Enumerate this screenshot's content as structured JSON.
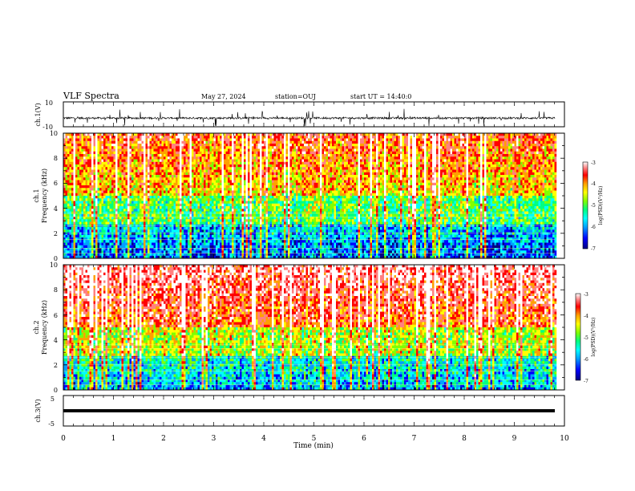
{
  "header": {
    "title": "VLF Spectra",
    "date": "May 27, 2024",
    "station": "station=OUJ",
    "start": "start UT = 14:40:0"
  },
  "chart_data": [
    {
      "type": "line",
      "ylabel": "ch.1(V)",
      "ylim": [
        -10,
        10
      ],
      "yticks": [
        "10",
        "-10"
      ],
      "description_trace": "noisy waveform around -3 V with spikes"
    },
    {
      "type": "heatmap",
      "ylabel_line1": "ch.1",
      "ylabel_line2": "Frequency (kHz)",
      "ylim": [
        0,
        10
      ],
      "yticks": [
        "0",
        "2",
        "4",
        "6",
        "8",
        "10"
      ],
      "colorbar": {
        "label": "log(PSD)(V²/Hz)",
        "ticks": [
          "-3",
          "-4",
          "-5",
          "-6",
          "-7"
        ],
        "range": [
          -7,
          -3
        ]
      }
    },
    {
      "type": "heatmap",
      "ylabel_line1": "ch.2",
      "ylabel_line2": "Frequency (kHz)",
      "ylim": [
        0,
        10
      ],
      "yticks": [
        "0",
        "2",
        "4",
        "6",
        "8",
        "10"
      ],
      "colorbar": {
        "label": "log(PSD)(V²/Hz)",
        "ticks": [
          "-3",
          "-4",
          "-5",
          "-6",
          "-7"
        ],
        "range": [
          -7,
          -3
        ]
      }
    },
    {
      "type": "line",
      "ylabel": "ch.3(V)",
      "ylim": [
        -5,
        5
      ],
      "yticks": [
        "5",
        "0",
        "-5"
      ],
      "constant_value": -0.9
    }
  ],
  "xaxis": {
    "label": "Time (min)",
    "xlim": [
      0,
      10
    ],
    "ticks": [
      "0",
      "1",
      "2",
      "3",
      "4",
      "5",
      "6",
      "7",
      "8",
      "9",
      "10"
    ]
  },
  "colors": {
    "colormap": [
      "#000080",
      "#0000ff",
      "#00a0ff",
      "#00ffff",
      "#00ff80",
      "#80ff00",
      "#ffff00",
      "#ffa000",
      "#ff0000",
      "#ff8080",
      "#ffffff"
    ]
  }
}
